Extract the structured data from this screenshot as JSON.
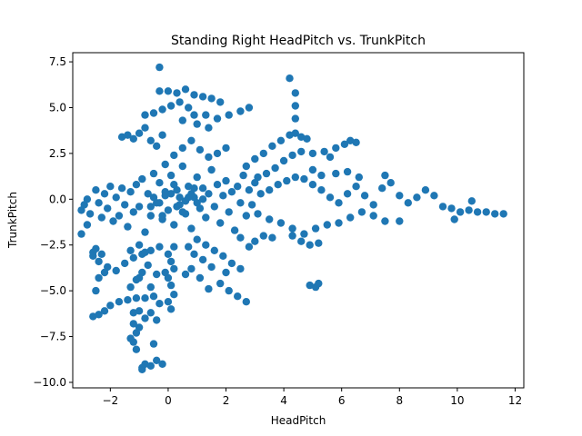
{
  "chart_data": {
    "type": "scatter",
    "title": "Standing Right HeadPitch vs. TrunkPitch",
    "xlabel": "HeadPitch",
    "ylabel": "TrunkPitch",
    "xlim": [
      -3.3,
      12.3
    ],
    "ylim": [
      -10.3,
      8.0
    ],
    "xticks": [
      -2,
      0,
      2,
      4,
      6,
      8,
      10,
      12
    ],
    "xtick_labels": [
      "−2",
      "0",
      "2",
      "4",
      "6",
      "8",
      "10",
      "12"
    ],
    "yticks": [
      -10.0,
      -7.5,
      -5.0,
      -2.5,
      0.0,
      2.5,
      5.0,
      7.5
    ],
    "ytick_labels": [
      "−10.0",
      "−7.5",
      "−5.0",
      "−2.5",
      "0.0",
      "2.5",
      "5.0",
      "7.5"
    ],
    "grid": false,
    "legend": "none",
    "marker_color": "#1f77b4",
    "series": [
      {
        "points": [
          [
            -3.0,
            -0.6
          ],
          [
            -2.9,
            -0.3
          ],
          [
            -2.8,
            0.0
          ],
          [
            -2.7,
            -0.8
          ],
          [
            -3.0,
            -1.9
          ],
          [
            -2.8,
            -1.4
          ],
          [
            -2.6,
            -2.9
          ],
          [
            -2.5,
            -2.7
          ],
          [
            -2.5,
            0.5
          ],
          [
            -2.4,
            -0.2
          ],
          [
            -2.3,
            -1.0
          ],
          [
            -2.2,
            0.3
          ],
          [
            -2.1,
            -0.5
          ],
          [
            -2.0,
            0.7
          ],
          [
            -1.9,
            -1.2
          ],
          [
            -1.8,
            0.1
          ],
          [
            -1.7,
            -0.9
          ],
          [
            -1.6,
            0.6
          ],
          [
            -1.5,
            -0.3
          ],
          [
            -1.4,
            -1.5
          ],
          [
            -1.3,
            0.4
          ],
          [
            -1.2,
            -0.7
          ],
          [
            -1.1,
            0.8
          ],
          [
            -1.0,
            -0.4
          ],
          [
            -0.9,
            1.1
          ],
          [
            -0.8,
            -1.8
          ],
          [
            -0.7,
            0.3
          ],
          [
            -0.6,
            -0.9
          ],
          [
            -0.5,
            1.4
          ],
          [
            -0.4,
            -0.2
          ],
          [
            -0.3,
            0.9
          ],
          [
            -0.2,
            -1.1
          ],
          [
            -0.1,
            0.2
          ],
          [
            0.0,
            -0.6
          ],
          [
            0.1,
            1.3
          ],
          [
            0.2,
            -1.4
          ],
          [
            0.3,
            0.5
          ],
          [
            0.4,
            -0.3
          ],
          [
            0.5,
            1.8
          ],
          [
            0.6,
            -0.8
          ],
          [
            0.7,
            0.7
          ],
          [
            0.8,
            -1.6
          ],
          [
            0.9,
            0.1
          ],
          [
            1.0,
            1.2
          ],
          [
            1.1,
            -0.5
          ],
          [
            1.2,
            0.6
          ],
          [
            1.3,
            -1.0
          ],
          [
            1.4,
            0.3
          ],
          [
            1.5,
            1.6
          ],
          [
            1.6,
            -0.4
          ],
          [
            1.7,
            0.8
          ],
          [
            1.8,
            -1.3
          ],
          [
            1.9,
            0.2
          ],
          [
            2.0,
            1.0
          ],
          [
            2.1,
            -0.7
          ],
          [
            2.2,
            0.4
          ],
          [
            2.3,
            -1.7
          ],
          [
            2.4,
            0.7
          ],
          [
            2.5,
            -0.2
          ],
          [
            2.6,
            1.3
          ],
          [
            2.7,
            -0.9
          ],
          [
            2.8,
            0.5
          ],
          [
            2.9,
            -0.3
          ],
          [
            3.0,
            0.9
          ],
          [
            -0.3,
            -0.2
          ],
          [
            0.1,
            0.3
          ],
          [
            0.4,
            0.1
          ],
          [
            0.6,
            -0.1
          ],
          [
            -0.1,
            0.4
          ],
          [
            0.3,
            -0.4
          ],
          [
            0.8,
            0.3
          ],
          [
            -0.5,
            0.1
          ],
          [
            0.2,
            0.8
          ],
          [
            0.5,
            -0.7
          ],
          [
            -0.2,
            -0.9
          ],
          [
            1.0,
            -0.2
          ],
          [
            0.7,
            0.1
          ],
          [
            -0.6,
            -0.4
          ],
          [
            0.9,
            0.6
          ],
          [
            1.2,
            0.0
          ],
          [
            -1.6,
            3.4
          ],
          [
            -1.4,
            3.5
          ],
          [
            -1.2,
            3.3
          ],
          [
            -1.0,
            3.6
          ],
          [
            -0.8,
            3.9
          ],
          [
            -0.6,
            3.2
          ],
          [
            -0.4,
            2.9
          ],
          [
            -0.2,
            3.5
          ],
          [
            -0.8,
            4.6
          ],
          [
            -0.5,
            4.7
          ],
          [
            -0.2,
            4.9
          ],
          [
            0.1,
            5.1
          ],
          [
            0.4,
            5.3
          ],
          [
            0.7,
            5.0
          ],
          [
            0.9,
            4.6
          ],
          [
            0.5,
            4.3
          ],
          [
            -0.3,
            5.9
          ],
          [
            0.0,
            5.9
          ],
          [
            0.3,
            5.8
          ],
          [
            0.6,
            6.0
          ],
          [
            0.9,
            5.7
          ],
          [
            1.2,
            5.6
          ],
          [
            1.5,
            5.5
          ],
          [
            1.8,
            5.3
          ],
          [
            -0.3,
            7.2
          ],
          [
            1.3,
            4.6
          ],
          [
            1.7,
            4.4
          ],
          [
            2.1,
            4.6
          ],
          [
            2.5,
            4.8
          ],
          [
            2.8,
            5.0
          ],
          [
            1.0,
            4.1
          ],
          [
            1.4,
            3.9
          ],
          [
            0.2,
            2.4
          ],
          [
            0.5,
            2.8
          ],
          [
            0.8,
            3.2
          ],
          [
            1.1,
            2.7
          ],
          [
            1.4,
            2.3
          ],
          [
            1.7,
            2.5
          ],
          [
            2.0,
            2.8
          ],
          [
            -0.1,
            1.9
          ],
          [
            2.7,
            1.8
          ],
          [
            3.0,
            2.2
          ],
          [
            3.3,
            2.5
          ],
          [
            3.6,
            2.9
          ],
          [
            3.9,
            3.2
          ],
          [
            4.2,
            3.5
          ],
          [
            4.4,
            3.6
          ],
          [
            4.6,
            3.4
          ],
          [
            3.1,
            1.2
          ],
          [
            3.4,
            1.4
          ],
          [
            3.7,
            1.7
          ],
          [
            4.0,
            2.1
          ],
          [
            4.3,
            2.4
          ],
          [
            4.6,
            2.6
          ],
          [
            5.0,
            2.5
          ],
          [
            5.4,
            2.6
          ],
          [
            5.8,
            2.8
          ],
          [
            6.1,
            3.0
          ],
          [
            6.3,
            3.2
          ],
          [
            6.5,
            3.1
          ],
          [
            5.6,
            2.3
          ],
          [
            4.8,
            3.3
          ],
          [
            4.2,
            6.6
          ],
          [
            4.4,
            5.8
          ],
          [
            4.4,
            5.1
          ],
          [
            4.4,
            4.4
          ],
          [
            3.2,
            0.3
          ],
          [
            3.5,
            0.5
          ],
          [
            3.8,
            0.8
          ],
          [
            4.1,
            1.0
          ],
          [
            4.4,
            1.2
          ],
          [
            4.7,
            1.1
          ],
          [
            5.0,
            0.8
          ],
          [
            5.3,
            0.5
          ],
          [
            5.6,
            0.1
          ],
          [
            5.9,
            -0.2
          ],
          [
            6.2,
            0.3
          ],
          [
            6.5,
            0.7
          ],
          [
            6.8,
            0.2
          ],
          [
            7.1,
            -0.3
          ],
          [
            7.4,
            0.6
          ],
          [
            7.7,
            0.9
          ],
          [
            8.0,
            0.2
          ],
          [
            8.3,
            -0.2
          ],
          [
            8.6,
            0.1
          ],
          [
            8.9,
            0.5
          ],
          [
            9.2,
            0.2
          ],
          [
            9.5,
            -0.4
          ],
          [
            9.8,
            -0.5
          ],
          [
            10.1,
            -0.7
          ],
          [
            10.4,
            -0.6
          ],
          [
            10.7,
            -0.7
          ],
          [
            11.0,
            -0.7
          ],
          [
            11.3,
            -0.8
          ],
          [
            11.6,
            -0.8
          ],
          [
            10.5,
            -0.1
          ],
          [
            9.9,
            -1.1
          ],
          [
            7.5,
            1.3
          ],
          [
            5.3,
            1.3
          ],
          [
            5.8,
            1.4
          ],
          [
            6.2,
            1.5
          ],
          [
            6.6,
            1.2
          ],
          [
            5.0,
            1.6
          ],
          [
            3.1,
            -0.8
          ],
          [
            3.5,
            -1.1
          ],
          [
            3.9,
            -1.3
          ],
          [
            4.3,
            -1.6
          ],
          [
            4.7,
            -1.9
          ],
          [
            5.1,
            -1.6
          ],
          [
            5.5,
            -1.4
          ],
          [
            5.9,
            -1.3
          ],
          [
            6.3,
            -1.0
          ],
          [
            6.7,
            -0.7
          ],
          [
            7.1,
            -0.9
          ],
          [
            7.5,
            -1.2
          ],
          [
            8.0,
            -1.2
          ],
          [
            4.6,
            -2.3
          ],
          [
            4.9,
            -2.5
          ],
          [
            5.2,
            -2.4
          ],
          [
            4.3,
            -2.0
          ],
          [
            3.0,
            -2.3
          ],
          [
            3.3,
            -2.0
          ],
          [
            2.5,
            -2.1
          ],
          [
            2.8,
            -2.6
          ],
          [
            3.6,
            -2.1
          ],
          [
            4.9,
            -4.7
          ],
          [
            5.1,
            -4.8
          ],
          [
            5.2,
            -4.6
          ],
          [
            1.0,
            -2.2
          ],
          [
            1.3,
            -2.5
          ],
          [
            1.6,
            -2.8
          ],
          [
            1.9,
            -3.1
          ],
          [
            2.2,
            -3.5
          ],
          [
            2.5,
            -3.8
          ],
          [
            2.0,
            -4.0
          ],
          [
            1.5,
            -3.7
          ],
          [
            1.2,
            -3.3
          ],
          [
            0.9,
            -3.0
          ],
          [
            0.7,
            -2.6
          ],
          [
            1.8,
            -4.6
          ],
          [
            2.1,
            -5.0
          ],
          [
            2.4,
            -5.3
          ],
          [
            2.7,
            -5.6
          ],
          [
            1.4,
            -4.9
          ],
          [
            1.1,
            -4.3
          ],
          [
            0.8,
            -3.8
          ],
          [
            0.6,
            -4.1
          ],
          [
            0.0,
            -3.0
          ],
          [
            0.1,
            -3.4
          ],
          [
            0.2,
            -3.8
          ],
          [
            0.0,
            -4.3
          ],
          [
            0.1,
            -4.7
          ],
          [
            0.2,
            -5.2
          ],
          [
            0.0,
            -5.6
          ],
          [
            0.1,
            -6.0
          ],
          [
            0.2,
            -2.6
          ],
          [
            -0.1,
            -4.0
          ],
          [
            -0.3,
            -2.6
          ],
          [
            -0.6,
            -2.8
          ],
          [
            -0.9,
            -3.0
          ],
          [
            -1.2,
            -3.2
          ],
          [
            -1.5,
            -3.5
          ],
          [
            -1.8,
            -3.9
          ],
          [
            -2.1,
            -3.7
          ],
          [
            -2.4,
            -3.4
          ],
          [
            -2.6,
            -3.1
          ],
          [
            -2.4,
            -4.3
          ],
          [
            -2.2,
            -4.0
          ],
          [
            -2.3,
            -3.0
          ],
          [
            -1.0,
            -2.5
          ],
          [
            -1.3,
            -2.8
          ],
          [
            -0.7,
            -3.6
          ],
          [
            -0.9,
            -4.0
          ],
          [
            -1.1,
            -4.4
          ],
          [
            -1.3,
            -4.8
          ],
          [
            -1.0,
            -4.3
          ],
          [
            -0.6,
            -4.8
          ],
          [
            -0.4,
            -4.1
          ],
          [
            -0.8,
            -2.9
          ],
          [
            -0.5,
            -5.3
          ],
          [
            -0.8,
            -5.4
          ],
          [
            -1.1,
            -5.4
          ],
          [
            -1.4,
            -5.5
          ],
          [
            -1.7,
            -5.6
          ],
          [
            -2.0,
            -5.8
          ],
          [
            -2.2,
            -6.1
          ],
          [
            -2.4,
            -6.3
          ],
          [
            -2.6,
            -6.4
          ],
          [
            -2.5,
            -5.0
          ],
          [
            -0.3,
            -5.7
          ],
          [
            -0.6,
            -6.2
          ],
          [
            -0.8,
            -6.5
          ],
          [
            -1.0,
            -6.1
          ],
          [
            -0.4,
            -6.6
          ],
          [
            -1.2,
            -6.2
          ],
          [
            -1.2,
            -6.8
          ],
          [
            -1.1,
            -7.3
          ],
          [
            -1.2,
            -7.8
          ],
          [
            -1.1,
            -8.2
          ],
          [
            -1.0,
            -7.0
          ],
          [
            -1.3,
            -7.6
          ],
          [
            -0.9,
            -9.3
          ],
          [
            -0.8,
            -9.0
          ],
          [
            -0.6,
            -9.1
          ],
          [
            -0.4,
            -8.8
          ],
          [
            -0.2,
            -9.0
          ],
          [
            -0.5,
            -7.9
          ],
          [
            -0.9,
            -9.2
          ]
        ]
      }
    ]
  }
}
